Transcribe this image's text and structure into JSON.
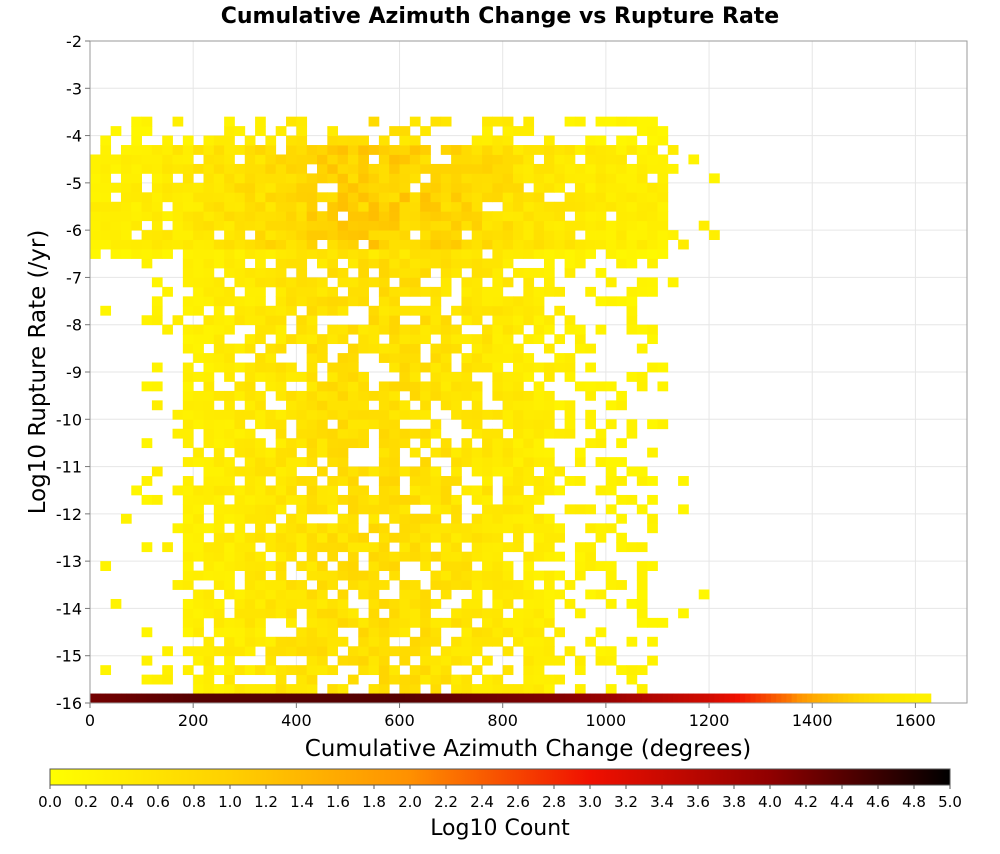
{
  "chart_data": {
    "type": "heatmap",
    "title": "Cumulative Azimuth Change vs Rupture Rate",
    "xlabel": "Cumulative Azimuth Change (degrees)",
    "ylabel": "Log10 Rupture Rate (/yr)",
    "xlim": [
      0,
      1700
    ],
    "ylim": [
      -16,
      -2
    ],
    "x_ticks": [
      "0",
      "200",
      "400",
      "600",
      "800",
      "1000",
      "1200",
      "1400",
      "1600"
    ],
    "y_ticks": [
      "-2",
      "-3",
      "-4",
      "-5",
      "-6",
      "-7",
      "-8",
      "-9",
      "-10",
      "-11",
      "-12",
      "-13",
      "-14",
      "-15",
      "-16"
    ],
    "grid": true,
    "colorbar": {
      "label": "Log10 Count",
      "range": [
        0,
        5
      ],
      "ticks": [
        "0.0",
        "0.2",
        "0.4",
        "0.6",
        "0.8",
        "1.0",
        "1.2",
        "1.4",
        "1.6",
        "1.8",
        "2.0",
        "2.2",
        "2.4",
        "2.6",
        "2.8",
        "3.0",
        "3.2",
        "3.4",
        "3.6",
        "3.8",
        "4.0",
        "4.2",
        "4.4",
        "4.6",
        "4.8",
        "5.0"
      ],
      "colors": [
        "#ffff00",
        "#ffd000",
        "#ff9000",
        "#f01000",
        "#900000",
        "#000000"
      ]
    },
    "bin_width_x": 20,
    "bin_height_y": 0.2,
    "bottom_row": {
      "y": -15.9,
      "x_bins": [
        [
          0,
          4.2
        ],
        [
          100,
          4.3
        ],
        [
          200,
          4.4
        ],
        [
          300,
          4.4
        ],
        [
          400,
          4.4
        ],
        [
          500,
          4.4
        ],
        [
          600,
          4.4
        ],
        [
          700,
          4.3
        ],
        [
          800,
          4.2
        ],
        [
          900,
          4.1
        ],
        [
          1000,
          3.9
        ],
        [
          1100,
          3.6
        ],
        [
          1200,
          3.3
        ],
        [
          1250,
          3.0
        ],
        [
          1300,
          2.6
        ],
        [
          1350,
          2.2
        ],
        [
          1400,
          1.6
        ],
        [
          1450,
          1.2
        ],
        [
          1500,
          0.8
        ],
        [
          1550,
          0.5
        ],
        [
          1600,
          0.3
        ]
      ]
    },
    "density_regions": [
      {
        "x_range": [
          0,
          1100
        ],
        "y_range": [
          -6.5,
          -4.0
        ],
        "peak_log10_count": 1.3
      },
      {
        "x_range": [
          180,
          1100
        ],
        "y_range": [
          -15.8,
          -6.6
        ],
        "peak_log10_count": 0.9
      }
    ]
  }
}
